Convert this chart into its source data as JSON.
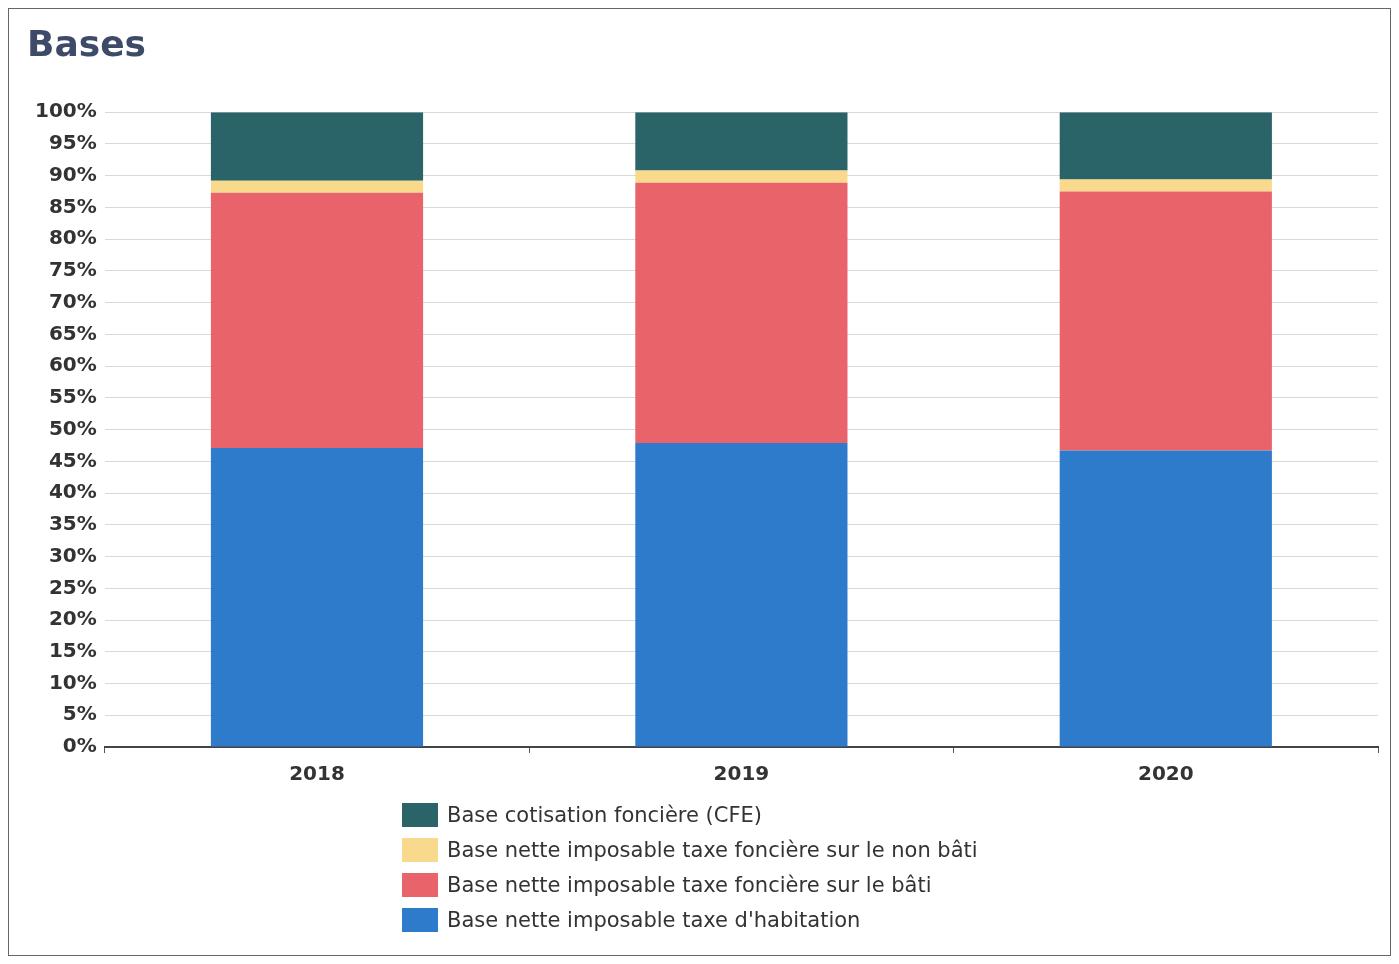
{
  "chart_data": {
    "type": "bar",
    "title": "Bases",
    "stacked": true,
    "categories": [
      "2018",
      "2019",
      "2020"
    ],
    "series": [
      {
        "name": "Base nette imposable taxe d'habitation",
        "color": "#2f7bcb",
        "values": [
          47.1,
          47.9,
          46.7
        ]
      },
      {
        "name": "Base nette imposable taxe foncière sur le bâti",
        "color": "#e9636b",
        "values": [
          40.2,
          41.0,
          40.8
        ]
      },
      {
        "name": "Base nette imposable taxe foncière sur le non bâti",
        "color": "#f9d98c",
        "values": [
          1.9,
          1.9,
          1.9
        ]
      },
      {
        "name": "Base cotisation foncière (CFE)",
        "color": "#2a6468",
        "values": [
          10.8,
          9.2,
          10.6
        ]
      }
    ],
    "ylim": [
      0,
      100
    ],
    "yticks": [
      {
        "value": 0,
        "label": "0%"
      },
      {
        "value": 5,
        "label": "5%"
      },
      {
        "value": 10,
        "label": "10%"
      },
      {
        "value": 15,
        "label": "15%"
      },
      {
        "value": 20,
        "label": "20%"
      },
      {
        "value": 25,
        "label": "25%"
      },
      {
        "value": 30,
        "label": "30%"
      },
      {
        "value": 35,
        "label": "35%"
      },
      {
        "value": 40,
        "label": "40%"
      },
      {
        "value": 45,
        "label": "45%"
      },
      {
        "value": 50,
        "label": "50%"
      },
      {
        "value": 55,
        "label": "55%"
      },
      {
        "value": 60,
        "label": "60%"
      },
      {
        "value": 65,
        "label": "65%"
      },
      {
        "value": 70,
        "label": "70%"
      },
      {
        "value": 75,
        "label": "75%"
      },
      {
        "value": 80,
        "label": "80%"
      },
      {
        "value": 85,
        "label": "85%"
      },
      {
        "value": 90,
        "label": "90%"
      },
      {
        "value": 95,
        "label": "95%"
      },
      {
        "value": 100,
        "label": "100%"
      }
    ],
    "grid": "y",
    "legend": "bottom"
  }
}
